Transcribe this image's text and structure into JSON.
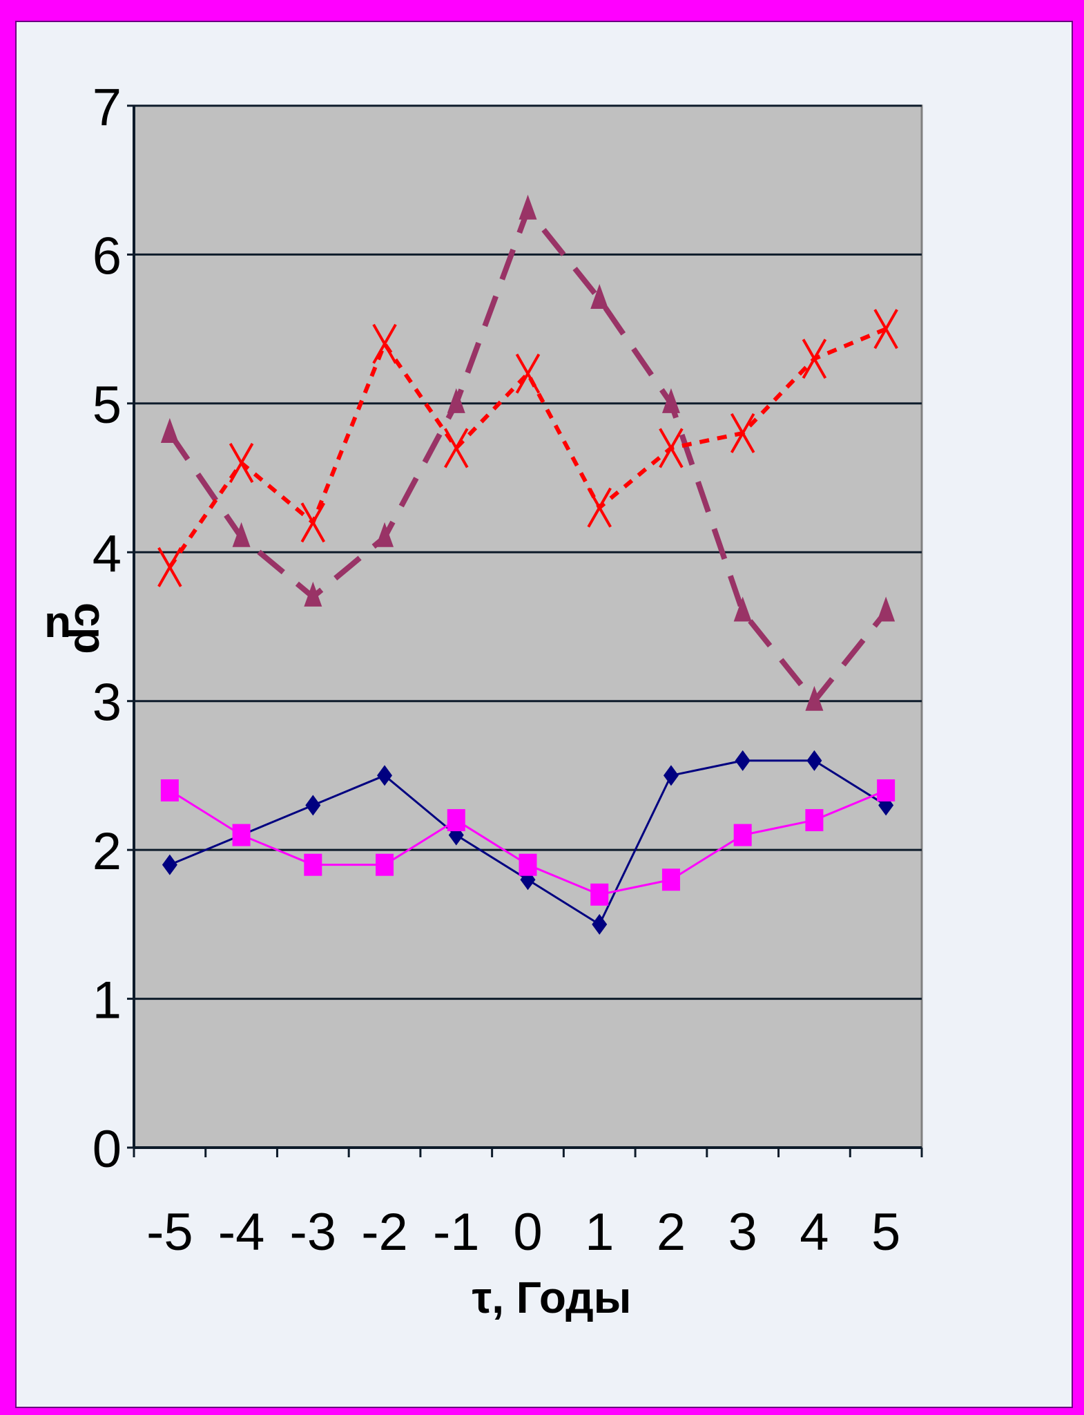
{
  "chart_data": {
    "type": "line",
    "xlabel": "τ, Годы",
    "ylabel": {
      "main": "n",
      "subscript": "ср"
    },
    "ylim": [
      0,
      7
    ],
    "yticks": [
      "0",
      "1",
      "2",
      "3",
      "4",
      "5",
      "6",
      "7"
    ],
    "categories": [
      "-5",
      "-4",
      "-3",
      "-2",
      "-1",
      "0",
      "1",
      "2",
      "3",
      "4",
      "5"
    ],
    "grid": true,
    "plot_background": "#c0c0c0",
    "series": [
      {
        "values": [
          1.9,
          2.1,
          2.3,
          2.5,
          2.1,
          1.8,
          1.5,
          2.5,
          2.6,
          2.6,
          2.3
        ],
        "color": "#000080",
        "marker": "diamond",
        "line": "solid"
      },
      {
        "values": [
          2.4,
          2.1,
          1.9,
          1.9,
          2.2,
          1.9,
          1.7,
          1.8,
          2.1,
          2.2,
          2.4
        ],
        "color": "#ff00ff",
        "marker": "square",
        "line": "solid"
      },
      {
        "values": [
          4.8,
          4.1,
          3.7,
          4.1,
          5.0,
          6.3,
          5.7,
          5.0,
          3.6,
          3.0,
          3.6
        ],
        "color": "#993366",
        "marker": "triangle",
        "line": "dashed"
      },
      {
        "values": [
          3.9,
          4.6,
          4.2,
          5.4,
          4.7,
          5.2,
          4.3,
          4.7,
          4.8,
          5.3,
          5.5
        ],
        "color": "#ff0000",
        "marker": "x",
        "line": "dotted"
      }
    ]
  }
}
